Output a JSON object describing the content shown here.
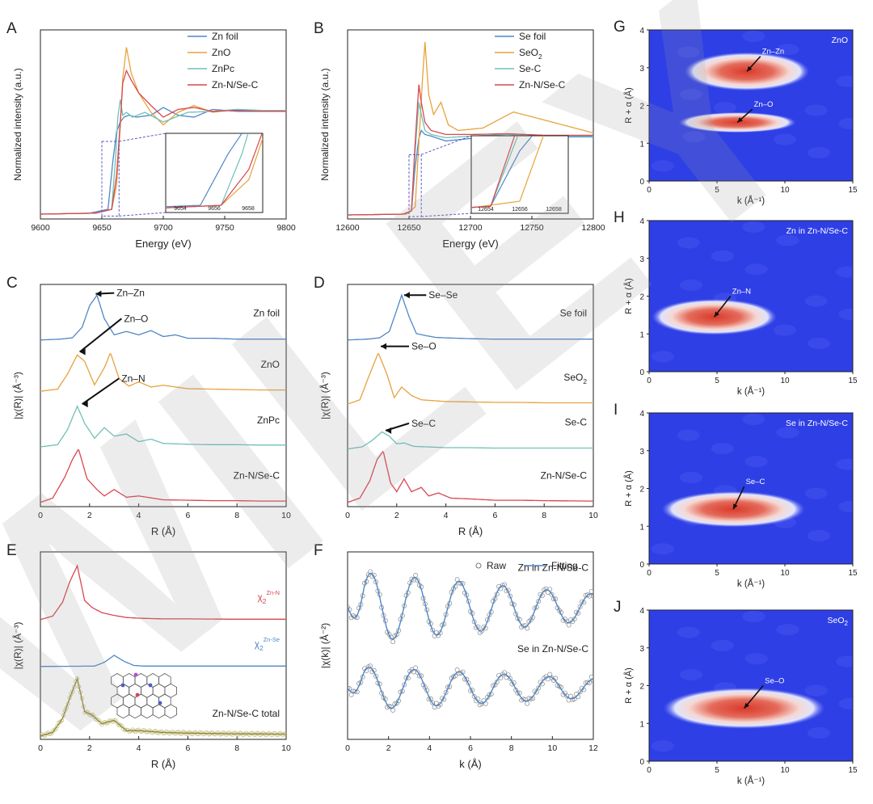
{
  "figure": {
    "watermark": "WILEY"
  },
  "colors": {
    "blue": "#4f86c6",
    "orange": "#e8a23c",
    "teal": "#6fc1b7",
    "red": "#d9464f",
    "axis": "#222222",
    "map_bg": "#2f3fe6",
    "map_hot": "#d93a2b",
    "olive": "#8f8a3a"
  },
  "chart_data": [
    {
      "id": "A",
      "type": "line",
      "panel_label": "A",
      "xlabel": "Energy (eV)",
      "ylabel": "Normalized intensity (a.u.)",
      "xlim": [
        9600,
        9800
      ],
      "xticks": [
        9600,
        9650,
        9700,
        9750,
        9800
      ],
      "ylim": [
        -0.05,
        1.9
      ],
      "series": [
        {
          "name": "Zn foil",
          "color": "#4f86c6",
          "x": [
            9600,
            9640,
            9655,
            9659,
            9662,
            9665,
            9668,
            9672,
            9678,
            9690,
            9700,
            9712,
            9725,
            9740,
            9760,
            9780,
            9800
          ],
          "y": [
            0,
            0.01,
            0.05,
            0.55,
            0.85,
            0.95,
            1.0,
            1.02,
            1.0,
            1.02,
            1.1,
            1.02,
            1.0,
            1.08,
            1.06,
            1.06,
            1.06
          ]
        },
        {
          "name": "ZnO",
          "color": "#e8a23c",
          "x": [
            9600,
            9645,
            9658,
            9662,
            9665,
            9667,
            9670,
            9674,
            9680,
            9690,
            9700,
            9712,
            9725,
            9740,
            9760,
            9780,
            9800
          ],
          "y": [
            0,
            0.01,
            0.05,
            0.3,
            0.9,
            1.4,
            1.72,
            1.45,
            1.25,
            1.05,
            0.92,
            1.05,
            1.12,
            1.05,
            1.08,
            1.06,
            1.06
          ]
        },
        {
          "name": "ZnPc",
          "color": "#6fc1b7",
          "x": [
            9600,
            9645,
            9658,
            9661,
            9663,
            9665,
            9667,
            9670,
            9675,
            9685,
            9700,
            9720,
            9740,
            9760,
            9780,
            9800
          ],
          "y": [
            0,
            0.01,
            0.05,
            0.55,
            1.0,
            1.18,
            1.02,
            1.05,
            1.0,
            1.05,
            0.95,
            1.05,
            1.06,
            1.08,
            1.07,
            1.07
          ]
        },
        {
          "name": "Zn-N/Se-C",
          "color": "#d9464f",
          "x": [
            9600,
            9645,
            9658,
            9662,
            9665,
            9667,
            9670,
            9674,
            9680,
            9690,
            9700,
            9712,
            9725,
            9740,
            9760,
            9780,
            9800
          ],
          "y": [
            0,
            0.01,
            0.05,
            0.4,
            0.95,
            1.35,
            1.48,
            1.38,
            1.25,
            1.12,
            1.0,
            1.08,
            1.1,
            1.06,
            1.07,
            1.06,
            1.06
          ]
        }
      ],
      "inset": {
        "xticks": [
          "9654",
          "9656",
          "9658"
        ]
      }
    },
    {
      "id": "B",
      "type": "line",
      "panel_label": "B",
      "xlabel": "Energy (eV)",
      "ylabel": "Normalized intensity (a.u.)",
      "xlim": [
        12600,
        12800
      ],
      "xticks": [
        12600,
        12650,
        12700,
        12750,
        12800
      ],
      "ylim": [
        -0.05,
        2.3
      ],
      "series": [
        {
          "name": "Se foil",
          "color": "#4f86c6",
          "x": [
            12600,
            12645,
            12652,
            12655,
            12658,
            12660,
            12663,
            12668,
            12680,
            12700,
            12730,
            12760,
            12800
          ],
          "y": [
            0,
            0.01,
            0.05,
            0.6,
            0.95,
            1.05,
            1.0,
            0.98,
            0.92,
            0.95,
            0.98,
            0.97,
            0.97
          ]
        },
        {
          "name": "SeO",
          "name_sub": "2",
          "color": "#e8a23c",
          "x": [
            12600,
            12648,
            12655,
            12658,
            12661,
            12663,
            12666,
            12670,
            12676,
            12682,
            12690,
            12710,
            12735,
            12760,
            12800
          ],
          "y": [
            0,
            0.01,
            0.1,
            0.9,
            1.7,
            2.15,
            1.5,
            1.25,
            1.4,
            1.12,
            1.05,
            1.08,
            1.28,
            1.18,
            1.02
          ]
        },
        {
          "name": "Se-C",
          "color": "#6fc1b7",
          "x": [
            12600,
            12645,
            12652,
            12655,
            12658,
            12660,
            12663,
            12668,
            12680,
            12700,
            12730,
            12760,
            12800
          ],
          "y": [
            0,
            0.01,
            0.05,
            0.8,
            1.4,
            1.25,
            1.05,
            1.0,
            0.96,
            0.98,
            1.0,
            0.98,
            0.98
          ]
        },
        {
          "name": "Zn-N/Se-C",
          "color": "#d9464f",
          "x": [
            12600,
            12645,
            12652,
            12655,
            12658,
            12660,
            12663,
            12668,
            12680,
            12700,
            12730,
            12760,
            12800
          ],
          "y": [
            0,
            0.01,
            0.05,
            0.9,
            1.62,
            1.4,
            1.15,
            1.05,
            1.0,
            1.0,
            1.01,
            0.99,
            0.99
          ]
        }
      ],
      "inset": {
        "xticks": [
          "12654",
          "12656",
          "12658"
        ]
      }
    },
    {
      "id": "C",
      "type": "line",
      "panel_label": "C",
      "xlabel": "R (Å)",
      "ylabel": "|χ(R)| (Å⁻³)",
      "xlim": [
        0,
        10
      ],
      "xticks": [
        0,
        2,
        4,
        6,
        8,
        10
      ],
      "ylim": [
        0,
        5.2
      ],
      "series": [
        {
          "name": "Zn foil",
          "color": "#4f86c6",
          "offset": 3.9,
          "x": [
            0,
            0.8,
            1.3,
            1.7,
            2.0,
            2.3,
            2.6,
            3.0,
            3.5,
            4.0,
            4.5,
            5.0,
            5.5,
            6.0,
            7.0,
            8.0,
            9.0,
            10.0
          ],
          "y": [
            0,
            0.02,
            0.05,
            0.3,
            0.8,
            1.05,
            0.5,
            0.12,
            0.2,
            0.12,
            0.22,
            0.08,
            0.12,
            0.04,
            0.04,
            0.02,
            0.02,
            0.02
          ]
        },
        {
          "name": "ZnO",
          "color": "#e8a23c",
          "offset": 2.7,
          "x": [
            0,
            0.7,
            1.1,
            1.5,
            1.8,
            2.2,
            2.6,
            2.85,
            3.2,
            3.6,
            4.0,
            4.5,
            5.0,
            6.0,
            7.0,
            8.0,
            9.0,
            10.0
          ],
          "y": [
            0,
            0.05,
            0.4,
            0.85,
            0.7,
            0.15,
            0.55,
            0.9,
            0.3,
            0.12,
            0.22,
            0.1,
            0.14,
            0.06,
            0.05,
            0.04,
            0.03,
            0.03
          ]
        },
        {
          "name": "ZnPc",
          "color": "#6fc1b7",
          "offset": 1.4,
          "x": [
            0,
            0.7,
            1.1,
            1.5,
            1.8,
            2.2,
            2.6,
            3.0,
            3.5,
            4.0,
            4.5,
            5.0,
            6.0,
            7.0,
            8.0,
            9.0,
            10.0
          ],
          "y": [
            0,
            0.05,
            0.4,
            0.95,
            0.55,
            0.2,
            0.45,
            0.25,
            0.3,
            0.12,
            0.18,
            0.08,
            0.06,
            0.05,
            0.05,
            0.04,
            0.04
          ]
        },
        {
          "name": "Zn-N/Se-C",
          "color": "#d9464f",
          "offset": 0.1,
          "x": [
            0,
            0.5,
            1.0,
            1.3,
            1.55,
            1.9,
            2.3,
            2.6,
            3.0,
            3.5,
            4.0,
            5.0,
            6.0,
            7.0,
            8.0,
            9.0,
            10.0
          ],
          "y": [
            0,
            0.1,
            0.6,
            1.0,
            1.25,
            0.55,
            0.3,
            0.15,
            0.3,
            0.12,
            0.15,
            0.06,
            0.05,
            0.04,
            0.04,
            0.03,
            0.03
          ]
        }
      ],
      "annotations": [
        "Zn–Zn",
        "Zn–O",
        "Zn–N"
      ]
    },
    {
      "id": "D",
      "type": "line",
      "panel_label": "D",
      "xlabel": "R (Å)",
      "ylabel": "|χ(R)| (Å⁻³)",
      "xlim": [
        0,
        10
      ],
      "xticks": [
        0,
        2,
        4,
        6,
        8,
        10
      ],
      "ylim": [
        0,
        5.2
      ],
      "series": [
        {
          "name": "Se foil",
          "color": "#4f86c6",
          "offset": 3.9,
          "x": [
            0,
            0.8,
            1.3,
            1.7,
            2.0,
            2.2,
            2.5,
            2.8,
            3.2,
            3.6,
            4.0,
            4.5,
            5.0,
            6.0,
            7.0,
            8.0,
            10.0
          ],
          "y": [
            0,
            0.02,
            0.05,
            0.2,
            0.7,
            1.05,
            0.55,
            0.15,
            0.1,
            0.06,
            0.05,
            0.04,
            0.03,
            0.02,
            0.02,
            0.02,
            0.02
          ]
        },
        {
          "name": "SeO",
          "name_sub": "2",
          "color": "#e8a23c",
          "offset": 2.4,
          "x": [
            0,
            0.5,
            0.9,
            1.25,
            1.6,
            1.9,
            2.2,
            2.6,
            3.0,
            3.5,
            4.0,
            5.0,
            6.0,
            7.0,
            8.0,
            9.0,
            10.0
          ],
          "y": [
            0,
            0.1,
            0.7,
            1.2,
            0.7,
            0.15,
            0.4,
            0.2,
            0.1,
            0.08,
            0.06,
            0.05,
            0.04,
            0.04,
            0.03,
            0.03,
            0.03
          ]
        },
        {
          "name": "Se-C",
          "color": "#6fc1b7",
          "offset": 1.35,
          "x": [
            0,
            0.6,
            1.0,
            1.4,
            1.7,
            2.0,
            2.3,
            2.7,
            3.2,
            4.0,
            5.0,
            6.0,
            8.0,
            10.0
          ],
          "y": [
            0,
            0.05,
            0.2,
            0.4,
            0.3,
            0.12,
            0.14,
            0.06,
            0.05,
            0.03,
            0.03,
            0.02,
            0.02,
            0.02
          ]
        },
        {
          "name": "Zn-N/Se-C",
          "color": "#d9464f",
          "offset": 0.1,
          "x": [
            0,
            0.5,
            0.9,
            1.2,
            1.45,
            1.75,
            2.0,
            2.3,
            2.6,
            3.0,
            3.3,
            3.7,
            4.2,
            5.0,
            6.0,
            7.0,
            8.0,
            10.0
          ],
          "y": [
            0,
            0.1,
            0.5,
            1.0,
            1.2,
            0.45,
            0.25,
            0.55,
            0.25,
            0.35,
            0.15,
            0.22,
            0.1,
            0.08,
            0.05,
            0.05,
            0.04,
            0.03
          ]
        }
      ],
      "annotations": [
        "Se–Se",
        "Se–O",
        "Se–C"
      ]
    },
    {
      "id": "E",
      "type": "line",
      "panel_label": "E",
      "xlabel": "R (Å)",
      "ylabel": "|χ(R)| (Å⁻³)",
      "xlim": [
        0,
        10
      ],
      "xticks": [
        0,
        2,
        4,
        6,
        8,
        10
      ],
      "ylim": [
        0,
        5.4
      ],
      "series": [
        {
          "name": "χ",
          "name_sub": "2",
          "name_sup": "Zn-N",
          "color": "#d9464f",
          "offset": 3.45,
          "x": [
            0,
            0.5,
            0.9,
            1.2,
            1.5,
            1.8,
            2.1,
            2.5,
            3.0,
            3.5,
            4.0,
            5.0,
            6.0,
            8.0,
            10.0
          ],
          "y": [
            0,
            0.1,
            0.5,
            1.1,
            1.55,
            0.55,
            0.35,
            0.2,
            0.12,
            0.06,
            0.04,
            0.02,
            0.02,
            0.01,
            0.01
          ]
        },
        {
          "name": "χ",
          "name_sub": "2",
          "name_sup": "Zn-Se",
          "color": "#4f86c6",
          "offset": 2.1,
          "x": [
            0,
            2.2,
            2.6,
            3.0,
            3.4,
            3.8,
            4.2,
            5.0,
            6.0,
            8.0,
            10.0
          ],
          "y": [
            0,
            0.01,
            0.12,
            0.32,
            0.15,
            0.03,
            0.01,
            0.01,
            0.01,
            0.01,
            0.01
          ]
        },
        {
          "name": "Zn-N/Se-C total",
          "color": "#8f8a3a",
          "offset": 0.1,
          "x": [
            0,
            0.5,
            0.9,
            1.2,
            1.5,
            1.8,
            2.1,
            2.5,
            3.0,
            3.5,
            4.0,
            5.0,
            6.0,
            8.0,
            10.0
          ],
          "y": [
            0,
            0.1,
            0.5,
            1.1,
            1.65,
            0.7,
            0.6,
            0.35,
            0.45,
            0.15,
            0.15,
            0.1,
            0.08,
            0.06,
            0.05
          ]
        }
      ]
    },
    {
      "id": "F",
      "type": "line",
      "panel_label": "F",
      "xlabel": "k (Å)",
      "ylabel": "|χ(k)| (Å⁻²)",
      "xlim": [
        0,
        12
      ],
      "xticks": [
        0,
        2,
        4,
        6,
        8,
        10,
        12
      ],
      "ylim": [
        -2.2,
        2.2
      ],
      "legend": [
        "Raw",
        "Fitting"
      ],
      "series": [
        {
          "name": "Zn in Zn-N/Se-C",
          "color": "#4f86c6",
          "offset": 0.9
        },
        {
          "name": "Se in Zn-N/Se-C",
          "color": "#4f86c6",
          "offset": -1.0
        }
      ]
    },
    {
      "id": "G",
      "type": "heatmap",
      "panel_label": "G",
      "title": "ZnO",
      "xlabel": "k (Å⁻¹)",
      "ylabel": "R + α (Å)",
      "xlim": [
        0,
        15
      ],
      "ylim": [
        0,
        4
      ],
      "xticks": [
        0,
        5,
        10,
        15
      ],
      "yticks": [
        0,
        1,
        2,
        3,
        4
      ],
      "blobs": [
        {
          "label": "Zn–Zn",
          "k": 7.2,
          "r": 2.9,
          "wk": 3.4,
          "wr": 0.3
        },
        {
          "label": "Zn–O",
          "k": 6.5,
          "r": 1.55,
          "wk": 3.2,
          "wr": 0.16
        }
      ]
    },
    {
      "id": "H",
      "type": "heatmap",
      "panel_label": "H",
      "title": "Zn in Zn-N/Se-C",
      "xlabel": "k (Å⁻¹)",
      "ylabel": "R + α (Å)",
      "xlim": [
        0,
        15
      ],
      "ylim": [
        0,
        4
      ],
      "xticks": [
        0,
        5,
        10,
        15
      ],
      "yticks": [
        0,
        1,
        2,
        3,
        4
      ],
      "blobs": [
        {
          "label": "Zn–N",
          "k": 4.8,
          "r": 1.45,
          "wk": 3.4,
          "wr": 0.28
        }
      ]
    },
    {
      "id": "I",
      "type": "heatmap",
      "panel_label": "I",
      "title": "Se in Zn-N/Se-C",
      "xlabel": "k (Å⁻¹)",
      "ylabel": "R + α (Å)",
      "xlim": [
        0,
        15
      ],
      "ylim": [
        0,
        4
      ],
      "xticks": [
        0,
        5,
        10,
        15
      ],
      "yticks": [
        0,
        1,
        2,
        3,
        4
      ],
      "blobs": [
        {
          "label": "Se–C",
          "k": 6.2,
          "r": 1.45,
          "wk": 3.9,
          "wr": 0.28
        }
      ]
    },
    {
      "id": "J",
      "type": "heatmap",
      "panel_label": "J",
      "title": "SeO",
      "title_sub": "2",
      "xlabel": "k (Å⁻¹)",
      "ylabel": "R + α (Å)",
      "xlim": [
        0,
        15
      ],
      "ylim": [
        0,
        4
      ],
      "xticks": [
        0,
        5,
        10,
        15
      ],
      "yticks": [
        0,
        1,
        2,
        3,
        4
      ],
      "blobs": [
        {
          "label": "Se–O",
          "k": 7.0,
          "r": 1.4,
          "wk": 4.4,
          "wr": 0.32
        }
      ]
    }
  ]
}
